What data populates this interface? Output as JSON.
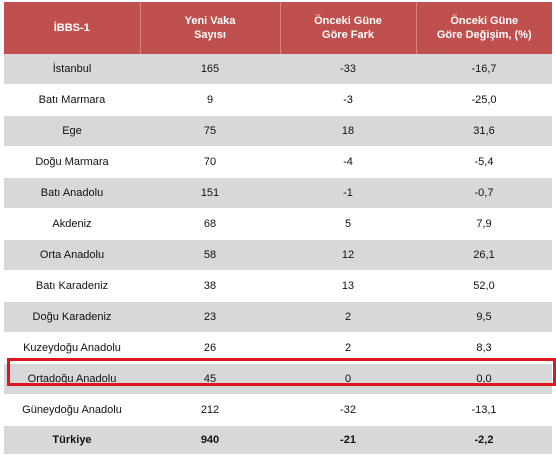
{
  "header": {
    "col1": "İBBS-1",
    "col2_line1": "Yeni Vaka",
    "col2_line2": "Sayısı",
    "col3_line1": "Önceki Güne",
    "col3_line2": "Göre Fark",
    "col4_line1": "Önceki Güne",
    "col4_line2": "Göre Değişim, (%)"
  },
  "rows": [
    {
      "region": "İstanbul",
      "cases": "165",
      "diff": "-33",
      "change": "-16,7"
    },
    {
      "region": "Batı Marmara",
      "cases": "9",
      "diff": "-3",
      "change": "-25,0"
    },
    {
      "region": "Ege",
      "cases": "75",
      "diff": "18",
      "change": "31,6"
    },
    {
      "region": "Doğu Marmara",
      "cases": "70",
      "diff": "-4",
      "change": "-5,4"
    },
    {
      "region": "Batı Anadolu",
      "cases": "151",
      "diff": "-1",
      "change": "-0,7"
    },
    {
      "region": "Akdeniz",
      "cases": "68",
      "diff": "5",
      "change": "7,9"
    },
    {
      "region": "Orta Anadolu",
      "cases": "58",
      "diff": "12",
      "change": "26,1"
    },
    {
      "region": "Batı Karadeniz",
      "cases": "38",
      "diff": "13",
      "change": "52,0"
    },
    {
      "region": "Doğu Karadeniz",
      "cases": "23",
      "diff": "2",
      "change": "9,5"
    },
    {
      "region": "Kuzeydoğu Anadolu",
      "cases": "26",
      "diff": "2",
      "change": "8,3"
    },
    {
      "region": "Ortadoğu Anadolu",
      "cases": "45",
      "diff": "0",
      "change": "0,0"
    },
    {
      "region": "Güneydoğu Anadolu",
      "cases": "212",
      "diff": "-32",
      "change": "-13,1"
    }
  ],
  "total": {
    "region": "Türkiye",
    "cases": "940",
    "diff": "-21",
    "change": "-2,2"
  },
  "colors": {
    "header_bg": "#c0504d",
    "shade_bg": "#d8d8d8",
    "highlight_border": "#e0161e"
  },
  "highlighted_region": "Ortadoğu Anadolu"
}
